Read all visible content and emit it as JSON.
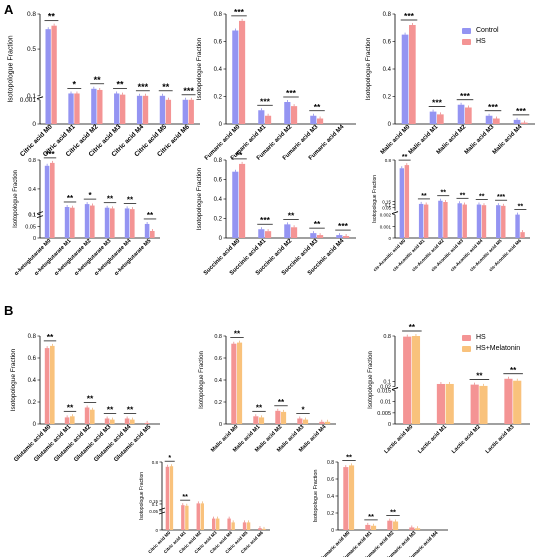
{
  "figure": {
    "panel_a": "A",
    "panel_b": "B",
    "legend_a": [
      {
        "label": "Control",
        "color": "#9494f2"
      },
      {
        "label": "HS",
        "color": "#f49494"
      }
    ],
    "legend_b": [
      {
        "label": "HS",
        "color": "#f49494"
      },
      {
        "label": "HS+Melatonin",
        "color": "#f9c27c"
      }
    ]
  },
  "chart_data": [
    {
      "type": "bar",
      "ylabel": "Isotopologue Fraction",
      "categories": [
        "Citric acid M0",
        "Citric acid M1",
        "Citric acid M2",
        "Citric acid M3",
        "Citric acid M4",
        "Citric acid M5",
        "Citric acid M6"
      ],
      "series": [
        {
          "name": "Control",
          "values": [
            0.67,
            0.12,
            0.16,
            0.12,
            0.1,
            0.1,
            0.032
          ]
        },
        {
          "name": "HS",
          "values": [
            0.7,
            0.12,
            0.15,
            0.11,
            0.1,
            0.09,
            0.007
          ]
        }
      ],
      "significance": [
        "**",
        "*",
        "**",
        "**",
        "***",
        "**",
        "***"
      ]
    },
    {
      "type": "bar",
      "ylabel": "Isotopologue Fraction",
      "categories": [
        "Fumaric acid M0",
        "Fumaric acid M1",
        "Fumaric acid M2",
        "Fumaric acid M3",
        "Fumaric acid M4"
      ],
      "series": [
        {
          "name": "Control",
          "values": [
            0.68,
            0.1,
            0.16,
            0.06,
            0.0
          ]
        },
        {
          "name": "HS",
          "values": [
            0.75,
            0.06,
            0.13,
            0.04,
            0.0
          ]
        }
      ],
      "significance": [
        "***",
        "***",
        "***",
        "**",
        ""
      ]
    },
    {
      "type": "bar",
      "ylabel": "Isotopologue Fraction",
      "categories": [
        "Malic acid M0",
        "Malic acid M1",
        "Malic acid M2",
        "Malic acid M3",
        "Malic acid M4"
      ],
      "series": [
        {
          "name": "Control",
          "values": [
            0.65,
            0.09,
            0.14,
            0.06,
            0.03
          ]
        },
        {
          "name": "HS",
          "values": [
            0.72,
            0.07,
            0.12,
            0.04,
            0.01
          ]
        }
      ],
      "significance": [
        "***",
        "***",
        "***",
        "***",
        "***"
      ]
    },
    {
      "type": "bar",
      "ylabel": "Isotopologue Fraction",
      "categories": [
        "α-ketoglutarate M0",
        "α-ketoglutarate M1",
        "α-ketoglutarate M2",
        "α-ketoglutarate M3",
        "α-ketoglutarate M4",
        "α-ketoglutarate M5"
      ],
      "series": [
        {
          "name": "Control",
          "values": [
            0.72,
            0.15,
            0.19,
            0.14,
            0.13,
            0.06
          ]
        },
        {
          "name": "HS",
          "values": [
            0.76,
            0.14,
            0.17,
            0.13,
            0.12,
            0.03
          ]
        }
      ],
      "significance": [
        "***",
        "**",
        "*",
        "**",
        "**",
        "**"
      ]
    },
    {
      "type": "bar",
      "ylabel": "Isotopologue Fraction",
      "categories": [
        "Succinic acid M0",
        "Succinic acid M1",
        "Succinic acid M2",
        "Succinic acid M3",
        "Succinic acid M4"
      ],
      "series": [
        {
          "name": "Control",
          "values": [
            0.68,
            0.09,
            0.14,
            0.05,
            0.03
          ]
        },
        {
          "name": "HS",
          "values": [
            0.76,
            0.07,
            0.11,
            0.03,
            0.02
          ]
        }
      ],
      "significance": [
        "**",
        "***",
        "**",
        "**",
        "***"
      ]
    },
    {
      "type": "bar",
      "ylabel": "Isotopologue Fraction",
      "categories": [
        "cis-Aconitic acid M0",
        "cis-Aconitic acid M1",
        "cis-Aconitic acid M2",
        "cis-Aconitic acid M3",
        "cis-Aconitic acid M4",
        "cis-Aconitic acid M5",
        "cis-Aconitic acid M6"
      ],
      "series": [
        {
          "name": "Control",
          "values": [
            0.67,
            0.11,
            0.16,
            0.12,
            0.1,
            0.09,
            0.003
          ]
        },
        {
          "name": "HS",
          "values": [
            0.72,
            0.1,
            0.14,
            0.1,
            0.09,
            0.08,
            0.0005
          ]
        }
      ],
      "significance": [
        "**",
        "**",
        "**",
        "**",
        "**",
        "***",
        "**"
      ]
    },
    {
      "type": "bar",
      "ylabel": "Isotopologue Fraction",
      "categories": [
        "Glutamic acid M0",
        "Glutamic acid M1",
        "Glutamic acid M2",
        "Glutamic acid M3",
        "Glutamic acid M4",
        "Glutamic acid M5"
      ],
      "series": [
        {
          "name": "HS",
          "values": [
            0.69,
            0.06,
            0.15,
            0.05,
            0.05,
            0.01
          ]
        },
        {
          "name": "HS+Melatonin",
          "values": [
            0.71,
            0.07,
            0.13,
            0.04,
            0.04,
            0.0
          ]
        }
      ],
      "significance": [
        "**",
        "**",
        "**",
        "**",
        "**",
        ""
      ]
    },
    {
      "type": "bar",
      "ylabel": "Isotopologue Fraction",
      "categories": [
        "Malic acid M0",
        "Malic acid M1",
        "Malic acid M2",
        "Malic acid M3",
        "Malic acid M4"
      ],
      "series": [
        {
          "name": "HS",
          "values": [
            0.73,
            0.07,
            0.12,
            0.05,
            0.02
          ]
        },
        {
          "name": "HS+Melatonin",
          "values": [
            0.74,
            0.06,
            0.11,
            0.04,
            0.02
          ]
        }
      ],
      "significance": [
        "**",
        "**",
        "**",
        "*",
        ""
      ]
    },
    {
      "type": "bar",
      "ylabel": "Isotopologue Fraction",
      "categories": [
        "Lactic acid M0",
        "Lactic acid M1",
        "Lactic acid M2",
        "Lactic acid M3"
      ],
      "series": [
        {
          "name": "HS",
          "values": [
            0.79,
            0.06,
            0.05,
            0.14
          ]
        },
        {
          "name": "HS+Melatonin",
          "values": [
            0.82,
            0.06,
            0.03,
            0.11
          ]
        }
      ],
      "significance": [
        "**",
        "",
        "**",
        "**"
      ]
    },
    {
      "type": "bar",
      "ylabel": "Isotopologue Fraction",
      "categories": [
        "Citric acid M0",
        "Citric acid M1",
        "Citric acid M2",
        "Citric acid M3",
        "Citric acid M4",
        "Citric acid M5",
        "Citric acid M6"
      ],
      "series": [
        {
          "name": "HS",
          "values": [
            0.72,
            0.08,
            0.11,
            0.03,
            0.03,
            0.02,
            0.005
          ]
        },
        {
          "name": "HS+Melatonin",
          "values": [
            0.73,
            0.07,
            0.11,
            0.03,
            0.02,
            0.02,
            0.003
          ]
        }
      ],
      "significance": [
        "*",
        "**",
        "",
        "",
        "",
        "",
        ""
      ]
    },
    {
      "type": "bar",
      "ylabel": "Isotopologue Fraction",
      "categories": [
        "Fumaric acid M0",
        "Fumaric acid M1",
        "Fumaric acid M2",
        "Fumaric acid M3",
        "Fumaric acid M4"
      ],
      "series": [
        {
          "name": "HS",
          "values": [
            0.74,
            0.06,
            0.11,
            0.03,
            0.0
          ]
        },
        {
          "name": "HS+Melatonin",
          "values": [
            0.76,
            0.05,
            0.1,
            0.02,
            0.0
          ]
        }
      ],
      "significance": [
        "**",
        "**",
        "**",
        "",
        ""
      ]
    }
  ]
}
